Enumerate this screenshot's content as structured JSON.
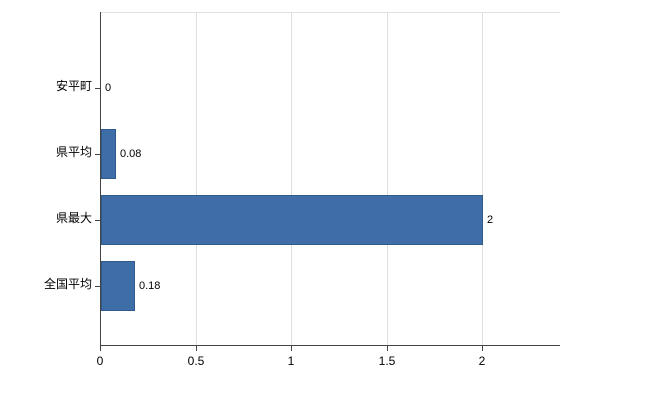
{
  "chart_data": {
    "type": "bar",
    "orientation": "horizontal",
    "title": "",
    "xlabel": "",
    "ylabel": "",
    "categories": [
      "安平町",
      "県平均",
      "県最大",
      "全国平均"
    ],
    "values": [
      0,
      0.08,
      2,
      0.18
    ],
    "value_labels": [
      "0",
      "0.08",
      "2",
      "0.18"
    ],
    "xlim": [
      0,
      2.4
    ],
    "x_ticks": [
      0,
      0.5,
      1,
      1.5,
      2
    ],
    "x_tick_labels": [
      "0",
      "0.5",
      "1",
      "1.5",
      "2"
    ],
    "grid": true,
    "legend": false,
    "colors": {
      "bar_fill": "#3e6da8",
      "bar_border": "#2e5a8c",
      "axis": "#444444",
      "gridline": "#e0e0e0",
      "text": "#000000",
      "background": "#ffffff"
    }
  }
}
